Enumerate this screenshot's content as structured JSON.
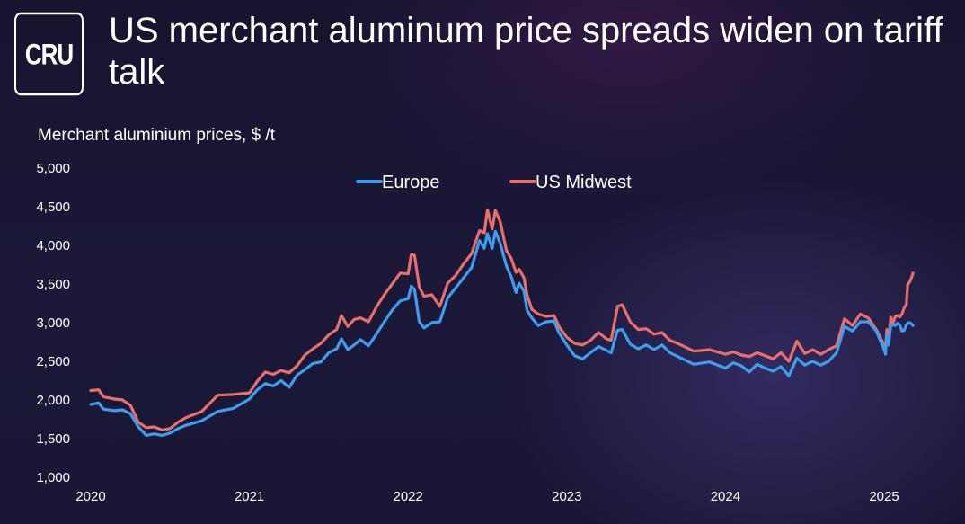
{
  "logo_text": "CRU",
  "title": "US merchant aluminum price spreads widen on tariff talk",
  "chart_data": {
    "type": "line",
    "title": "US merchant aluminum price spreads widen on tariff talk",
    "ylabel": "Merchant aluminium prices, $ /t",
    "xlabel": "",
    "ylim": [
      1000,
      5000
    ],
    "xlim": [
      2020.0,
      2025.2
    ],
    "yticks": [
      1000,
      1500,
      2000,
      2500,
      3000,
      3500,
      4000,
      4500,
      5000
    ],
    "ytick_labels": [
      "1,000",
      "1,500",
      "2,000",
      "2,500",
      "3,000",
      "3,500",
      "4,000",
      "4,500",
      "5,000"
    ],
    "xticks": [
      2020,
      2021,
      2022,
      2023,
      2024,
      2025
    ],
    "xtick_labels": [
      "2020",
      "2021",
      "2022",
      "2023",
      "2024",
      "2025"
    ],
    "grid": false,
    "legend_position": "top-center",
    "series": [
      {
        "name": "Europe",
        "color": "#3d9df0",
        "points": [
          [
            2020.0,
            1930
          ],
          [
            2020.05,
            1950
          ],
          [
            2020.08,
            1870
          ],
          [
            2020.15,
            1850
          ],
          [
            2020.2,
            1860
          ],
          [
            2020.25,
            1810
          ],
          [
            2020.3,
            1640
          ],
          [
            2020.35,
            1530
          ],
          [
            2020.4,
            1550
          ],
          [
            2020.45,
            1530
          ],
          [
            2020.5,
            1560
          ],
          [
            2020.55,
            1620
          ],
          [
            2020.6,
            1660
          ],
          [
            2020.7,
            1720
          ],
          [
            2020.8,
            1840
          ],
          [
            2020.9,
            1880
          ],
          [
            2021.0,
            2000
          ],
          [
            2021.05,
            2120
          ],
          [
            2021.1,
            2200
          ],
          [
            2021.15,
            2170
          ],
          [
            2021.2,
            2240
          ],
          [
            2021.25,
            2150
          ],
          [
            2021.3,
            2310
          ],
          [
            2021.35,
            2380
          ],
          [
            2021.4,
            2460
          ],
          [
            2021.45,
            2480
          ],
          [
            2021.5,
            2600
          ],
          [
            2021.55,
            2650
          ],
          [
            2021.58,
            2780
          ],
          [
            2021.62,
            2640
          ],
          [
            2021.66,
            2700
          ],
          [
            2021.7,
            2770
          ],
          [
            2021.75,
            2690
          ],
          [
            2021.8,
            2840
          ],
          [
            2021.85,
            3000
          ],
          [
            2021.9,
            3150
          ],
          [
            2021.95,
            3270
          ],
          [
            2022.0,
            3300
          ],
          [
            2022.02,
            3460
          ],
          [
            2022.04,
            3420
          ],
          [
            2022.07,
            3000
          ],
          [
            2022.1,
            2920
          ],
          [
            2022.15,
            2990
          ],
          [
            2022.2,
            3000
          ],
          [
            2022.25,
            3310
          ],
          [
            2022.3,
            3440
          ],
          [
            2022.35,
            3570
          ],
          [
            2022.4,
            3700
          ],
          [
            2022.45,
            4050
          ],
          [
            2022.48,
            3950
          ],
          [
            2022.5,
            4140
          ],
          [
            2022.53,
            3950
          ],
          [
            2022.55,
            4170
          ],
          [
            2022.58,
            4020
          ],
          [
            2022.62,
            3720
          ],
          [
            2022.65,
            3580
          ],
          [
            2022.68,
            3380
          ],
          [
            2022.7,
            3500
          ],
          [
            2022.73,
            3400
          ],
          [
            2022.75,
            3150
          ],
          [
            2022.78,
            3050
          ],
          [
            2022.82,
            2950
          ],
          [
            2022.87,
            3000
          ],
          [
            2022.92,
            3010
          ],
          [
            2022.95,
            2860
          ],
          [
            2023.0,
            2700
          ],
          [
            2023.05,
            2560
          ],
          [
            2023.1,
            2520
          ],
          [
            2023.15,
            2600
          ],
          [
            2023.2,
            2680
          ],
          [
            2023.25,
            2630
          ],
          [
            2023.28,
            2600
          ],
          [
            2023.32,
            2890
          ],
          [
            2023.35,
            2900
          ],
          [
            2023.4,
            2710
          ],
          [
            2023.45,
            2650
          ],
          [
            2023.5,
            2700
          ],
          [
            2023.55,
            2640
          ],
          [
            2023.6,
            2700
          ],
          [
            2023.65,
            2600
          ],
          [
            2023.7,
            2550
          ],
          [
            2023.8,
            2450
          ],
          [
            2023.9,
            2480
          ],
          [
            2024.0,
            2400
          ],
          [
            2024.05,
            2470
          ],
          [
            2024.1,
            2430
          ],
          [
            2024.15,
            2350
          ],
          [
            2024.2,
            2450
          ],
          [
            2024.25,
            2400
          ],
          [
            2024.3,
            2360
          ],
          [
            2024.35,
            2420
          ],
          [
            2024.4,
            2300
          ],
          [
            2024.45,
            2530
          ],
          [
            2024.5,
            2440
          ],
          [
            2024.55,
            2490
          ],
          [
            2024.6,
            2440
          ],
          [
            2024.65,
            2490
          ],
          [
            2024.7,
            2600
          ],
          [
            2024.75,
            2940
          ],
          [
            2024.8,
            2880
          ],
          [
            2024.85,
            3000
          ],
          [
            2024.9,
            3000
          ],
          [
            2024.95,
            2880
          ],
          [
            2025.0,
            2640
          ],
          [
            2025.03,
            2580
          ],
          [
            2025.06,
            2830
          ],
          [
            2025.1,
            2700
          ],
          [
            2025.15,
            2950
          ],
          [
            2025.2,
            2960
          ],
          [
            2025.25,
            2950
          ],
          [
            2025.3,
            2980
          ],
          [
            2025.35,
            2960
          ],
          [
            2025.4,
            2880
          ],
          [
            2025.45,
            2890
          ],
          [
            2025.5,
            2960
          ],
          [
            2025.55,
            2990
          ],
          [
            2025.6,
            2980
          ],
          [
            2025.65,
            2950
          ]
        ]
      },
      {
        "name": "US Midwest",
        "color": "#e96f6b",
        "points": [
          [
            2020.0,
            2110
          ],
          [
            2020.05,
            2120
          ],
          [
            2020.08,
            2030
          ],
          [
            2020.15,
            2000
          ],
          [
            2020.2,
            1990
          ],
          [
            2020.25,
            1920
          ],
          [
            2020.3,
            1700
          ],
          [
            2020.35,
            1630
          ],
          [
            2020.4,
            1640
          ],
          [
            2020.45,
            1600
          ],
          [
            2020.5,
            1620
          ],
          [
            2020.55,
            1700
          ],
          [
            2020.6,
            1760
          ],
          [
            2020.7,
            1840
          ],
          [
            2020.8,
            2050
          ],
          [
            2020.9,
            2060
          ],
          [
            2021.0,
            2080
          ],
          [
            2021.05,
            2230
          ],
          [
            2021.1,
            2350
          ],
          [
            2021.15,
            2320
          ],
          [
            2021.2,
            2370
          ],
          [
            2021.25,
            2340
          ],
          [
            2021.3,
            2430
          ],
          [
            2021.35,
            2570
          ],
          [
            2021.4,
            2650
          ],
          [
            2021.45,
            2720
          ],
          [
            2021.5,
            2830
          ],
          [
            2021.55,
            2900
          ],
          [
            2021.58,
            3080
          ],
          [
            2021.62,
            2940
          ],
          [
            2021.66,
            3030
          ],
          [
            2021.7,
            3050
          ],
          [
            2021.75,
            3000
          ],
          [
            2021.8,
            3190
          ],
          [
            2021.85,
            3350
          ],
          [
            2021.9,
            3490
          ],
          [
            2021.95,
            3630
          ],
          [
            2022.0,
            3620
          ],
          [
            2022.02,
            3870
          ],
          [
            2022.04,
            3860
          ],
          [
            2022.07,
            3450
          ],
          [
            2022.1,
            3330
          ],
          [
            2022.15,
            3350
          ],
          [
            2022.2,
            3200
          ],
          [
            2022.25,
            3500
          ],
          [
            2022.3,
            3600
          ],
          [
            2022.35,
            3750
          ],
          [
            2022.4,
            3880
          ],
          [
            2022.45,
            4180
          ],
          [
            2022.48,
            4150
          ],
          [
            2022.5,
            4450
          ],
          [
            2022.53,
            4200
          ],
          [
            2022.55,
            4440
          ],
          [
            2022.58,
            4300
          ],
          [
            2022.62,
            3920
          ],
          [
            2022.65,
            3820
          ],
          [
            2022.68,
            3640
          ],
          [
            2022.7,
            3680
          ],
          [
            2022.73,
            3570
          ],
          [
            2022.75,
            3350
          ],
          [
            2022.78,
            3160
          ],
          [
            2022.82,
            3100
          ],
          [
            2022.87,
            3070
          ],
          [
            2022.92,
            3080
          ],
          [
            2022.95,
            2940
          ],
          [
            2023.0,
            2800
          ],
          [
            2023.05,
            2720
          ],
          [
            2023.1,
            2700
          ],
          [
            2023.15,
            2760
          ],
          [
            2023.2,
            2860
          ],
          [
            2023.25,
            2780
          ],
          [
            2023.28,
            2760
          ],
          [
            2023.32,
            3200
          ],
          [
            2023.35,
            3220
          ],
          [
            2023.4,
            3000
          ],
          [
            2023.45,
            2900
          ],
          [
            2023.5,
            2910
          ],
          [
            2023.55,
            2840
          ],
          [
            2023.6,
            2860
          ],
          [
            2023.65,
            2760
          ],
          [
            2023.7,
            2720
          ],
          [
            2023.8,
            2620
          ],
          [
            2023.9,
            2640
          ],
          [
            2024.0,
            2580
          ],
          [
            2024.05,
            2610
          ],
          [
            2024.1,
            2570
          ],
          [
            2024.15,
            2550
          ],
          [
            2024.2,
            2600
          ],
          [
            2024.25,
            2560
          ],
          [
            2024.3,
            2520
          ],
          [
            2024.35,
            2600
          ],
          [
            2024.4,
            2490
          ],
          [
            2024.45,
            2750
          ],
          [
            2024.5,
            2590
          ],
          [
            2024.55,
            2640
          ],
          [
            2024.6,
            2580
          ],
          [
            2024.65,
            2640
          ],
          [
            2024.7,
            2690
          ],
          [
            2024.75,
            3040
          ],
          [
            2024.8,
            2950
          ],
          [
            2024.85,
            3100
          ],
          [
            2024.9,
            3050
          ],
          [
            2024.95,
            2900
          ],
          [
            2025.0,
            2700
          ],
          [
            2025.03,
            2650
          ],
          [
            2025.06,
            2900
          ],
          [
            2025.1,
            2760
          ],
          [
            2025.15,
            3060
          ],
          [
            2025.2,
            2980
          ],
          [
            2025.25,
            3070
          ],
          [
            2025.3,
            3080
          ],
          [
            2025.35,
            3060
          ],
          [
            2025.4,
            3100
          ],
          [
            2025.45,
            3180
          ],
          [
            2025.5,
            3220
          ],
          [
            2025.53,
            3480
          ],
          [
            2025.58,
            3520
          ],
          [
            2025.62,
            3580
          ],
          [
            2025.65,
            3630
          ]
        ]
      }
    ]
  }
}
